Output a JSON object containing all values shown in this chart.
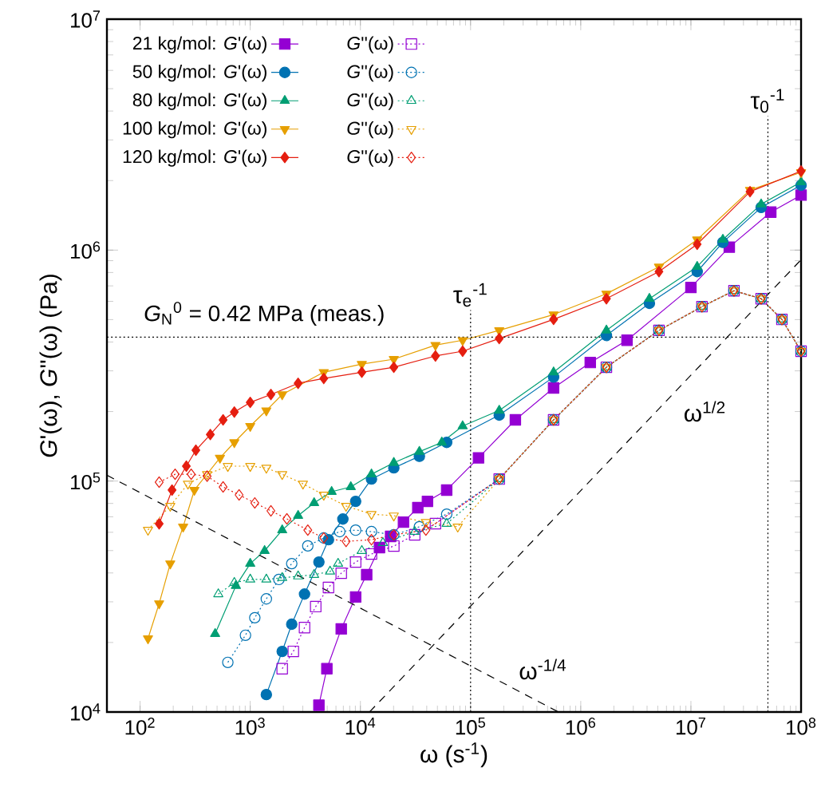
{
  "chart_data": {
    "type": "line",
    "log": "xy",
    "xlabel": "ω (s$^{-1}$)",
    "ylabel": "*G*'(ω), *G*''(ω) (Pa)",
    "xlim": [
      50,
      100000000
    ],
    "ylim": [
      10000,
      10000000
    ],
    "xticks": [
      {
        "value": 100,
        "label": "10$^{2}$"
      },
      {
        "value": 1000,
        "label": "10$^{3}$"
      },
      {
        "value": 10000,
        "label": "10$^{4}$"
      },
      {
        "value": 100000,
        "label": "10$^{5}$"
      },
      {
        "value": 1000000,
        "label": "10$^{6}$"
      },
      {
        "value": 10000000,
        "label": "10$^{7}$"
      },
      {
        "value": 100000000,
        "label": "10$^{8}$"
      }
    ],
    "yticks": [
      {
        "value": 10000,
        "label": "10$^{4}$"
      },
      {
        "value": 100000,
        "label": "10$^{5}$"
      },
      {
        "value": 1000000,
        "label": "10$^{6}$"
      },
      {
        "value": 10000000,
        "label": "10$^{7}$"
      }
    ],
    "legend": "top left",
    "series": [
      {
        "name": "21 kg/mol: *G*'(ω)",
        "color": "#9400d3",
        "marker": "square",
        "line_style": "solid",
        "x": [
          4200,
          4960,
          6700,
          9050,
          11400,
          14900,
          18800,
          24600,
          33200,
          40600,
          60700,
          118000,
          255000,
          567000,
          1220000,
          2630000,
          10000000,
          22300000,
          53100000,
          100000000
        ],
        "values": [
          10700,
          15400,
          22900,
          31500,
          39300,
          51500,
          57600,
          66400,
          76700,
          81700,
          91400,
          126000,
          184000,
          253000,
          326000,
          407000,
          689000,
          1030000,
          1460000,
          1730000
        ]
      },
      {
        "name": "*G*''(ω)",
        "color": "#9400d3",
        "marker": "square",
        "line_style": "dotted",
        "x": [
          1950,
          2460,
          3110,
          3930,
          5130,
          6700,
          9050,
          12600,
          20100,
          31100,
          48000,
          182000,
          567000,
          1710000,
          5130000,
          12600000,
          24600000,
          43400000,
          67000000,
          100000000
        ],
        "values": [
          15400,
          18300,
          23200,
          28600,
          34600,
          39900,
          44600,
          48300,
          52300,
          58500,
          65400,
          102000,
          184000,
          311000,
          449000,
          569000,
          667000,
          616000,
          501000,
          365000
        ]
      },
      {
        "name": "50 kg/mol: *G*'(ω)",
        "color": "#0072b2",
        "marker": "circle",
        "line_style": "solid",
        "x": [
          1400,
          1950,
          2380,
          3110,
          4200,
          5130,
          6930,
          9050,
          12600,
          20100,
          34300,
          60700,
          182000,
          567000,
          1710000,
          4200000,
          11400000,
          19500000,
          43400000,
          100000000
        ],
        "values": [
          11900,
          18300,
          24000,
          32400,
          44600,
          55700,
          68500,
          81700,
          102000,
          114000,
          128000,
          147000,
          193000,
          282000,
          427000,
          588000,
          807000,
          1080000,
          1530000,
          1910000
        ]
      },
      {
        "name": "*G*''(ω)",
        "color": "#0072b2",
        "marker": "circle",
        "line_style": "dotted",
        "x": [
          626,
          905,
          1100,
          1400,
          1820,
          2380,
          3330,
          4650,
          6490,
          9050,
          12600,
          20100,
          34300,
          60700,
          182000,
          567000,
          1710000,
          5130000,
          12600000,
          24600000,
          43400000,
          67000000,
          100000000
        ],
        "values": [
          16400,
          21500,
          25600,
          30900,
          37500,
          43900,
          52400,
          56700,
          60400,
          61300,
          60400,
          58500,
          63400,
          71900,
          102000,
          184000,
          311000,
          449000,
          569000,
          667000,
          616000,
          501000,
          365000
        ]
      },
      {
        "name": "80 kg/mol: *G*'(ω)",
        "color": "#009e73",
        "marker": "triangle",
        "line_style": "solid",
        "x": [
          480,
          741,
          1000,
          1350,
          1950,
          2720,
          3800,
          5480,
          8180,
          12600,
          20100,
          34300,
          54800,
          84700,
          182000,
          567000,
          1710000,
          4200000,
          11400000,
          19500000,
          43400000,
          100000000
        ],
        "values": [
          21800,
          35200,
          43900,
          49900,
          61300,
          70800,
          80400,
          89900,
          94300,
          107000,
          120000,
          134000,
          147000,
          173000,
          202000,
          296000,
          449000,
          616000,
          847000,
          1110000,
          1580000,
          1970000
        ]
      },
      {
        "name": "*G*''(ω)",
        "color": "#009e73",
        "marker": "triangle",
        "line_style": "dotted",
        "x": [
          513,
          717,
          1000,
          1400,
          1950,
          2720,
          3800,
          5300,
          6270,
          10300,
          16000,
          31100,
          60700,
          182000,
          567000,
          1710000,
          5130000,
          12600000,
          24600000,
          43400000,
          67000000,
          100000000
        ],
        "values": [
          32400,
          36300,
          37500,
          37500,
          38100,
          38700,
          39300,
          40600,
          43900,
          49900,
          54000,
          60400,
          65400,
          102000,
          184000,
          311000,
          449000,
          569000,
          667000,
          616000,
          501000,
          365000
        ]
      },
      {
        "name": "100 kg/mol: *G*'(ω)",
        "color": "#e69f00",
        "marker": "triangle-down",
        "line_style": "solid",
        "x": [
          118,
          149,
          188,
          246,
          311,
          531,
          717,
          1000,
          1400,
          1950,
          4650,
          10300,
          20100,
          48000,
          84700,
          182000,
          567000,
          1710000,
          5130000,
          11400000,
          34400000,
          100000000
        ],
        "values": [
          20800,
          29500,
          43900,
          63400,
          91400,
          126000,
          147000,
          173000,
          202000,
          237000,
          296000,
          321000,
          337000,
          388000,
          407000,
          449000,
          526000,
          647000,
          847000,
          1110000,
          1820000,
          2170000
        ]
      },
      {
        "name": "*G*''(ω)",
        "color": "#e69f00",
        "marker": "triangle-down",
        "line_style": "dotted",
        "x": [
          118,
          188,
          272,
          406,
          626,
          1000,
          1400,
          1950,
          3010,
          4650,
          7410,
          12600,
          20100,
          39300,
          76500,
          182000,
          567000,
          1710000,
          5130000,
          12600000,
          24600000,
          43400000,
          67000000,
          100000000
        ],
        "values": [
          61400,
          78000,
          97300,
          107000,
          116000,
          116000,
          114000,
          107000,
          97300,
          87100,
          78000,
          71900,
          70800,
          66400,
          63400,
          102000,
          184000,
          311000,
          449000,
          569000,
          667000,
          616000,
          501000,
          365000
        ]
      },
      {
        "name": "120 kg/mol: *G*'(ω)",
        "color": "#e51e10",
        "marker": "diamond",
        "line_style": "solid",
        "x": [
          149,
          195,
          263,
          321,
          434,
          567,
          717,
          1000,
          1540,
          2720,
          4650,
          10300,
          20100,
          48000,
          84700,
          182000,
          567000,
          1710000,
          5130000,
          11400000,
          34400000,
          100000000
        ],
        "values": [
          65300,
          91400,
          116000,
          136000,
          159000,
          184000,
          199000,
          219000,
          237000,
          265000,
          278000,
          296000,
          311000,
          348000,
          365000,
          414000,
          501000,
          616000,
          807000,
          1060000,
          1790000,
          2200000
        ]
      },
      {
        "name": "*G*''(ω)",
        "color": "#e51e10",
        "marker": "diamond",
        "line_style": "dotted",
        "x": [
          149,
          208,
          291,
          406,
          567,
          792,
          1100,
          1540,
          2150,
          3330,
          4650,
          7410,
          12600,
          20100,
          39300,
          182000,
          567000,
          1710000,
          5130000,
          12600000,
          24600000,
          43400000,
          67000000,
          100000000
        ],
        "values": [
          98900,
          107000,
          107000,
          105000,
          94300,
          87100,
          80400,
          74300,
          68600,
          61300,
          56700,
          54800,
          55700,
          58500,
          61300,
          102000,
          184000,
          311000,
          449000,
          569000,
          667000,
          616000,
          501000,
          365000
        ]
      },
      {
        "name": "ω$^{1/2}$",
        "color": "#000000",
        "marker": "none",
        "line_style": "dashed",
        "x": [
          12100,
          100000000
        ],
        "values": [
          10000,
          908000
        ]
      },
      {
        "name": "ω$^{-1/4}$",
        "color": "#000000",
        "marker": "none",
        "line_style": "dashed",
        "x": [
          50,
          627000
        ],
        "values": [
          106000,
          10000
        ]
      }
    ],
    "ref_lines": [
      {
        "axis": "x",
        "value": 100000,
        "label": "τ$_{e}$$^{-1}$",
        "line_style": "dotted"
      },
      {
        "axis": "x",
        "value": 50000000,
        "label": "τ$_{0}$$^{-1}$",
        "line_style": "dotted"
      },
      {
        "axis": "y",
        "value": 420000,
        "line_style": "dotted"
      }
    ],
    "annotations": [
      "*G*$_{N}$$^{0}$ = 0.42 MPa (meas.)"
    ]
  }
}
